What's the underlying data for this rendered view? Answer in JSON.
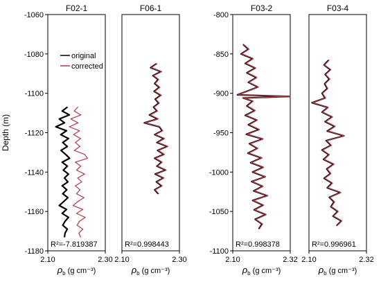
{
  "chart_data": [
    {
      "type": "line",
      "title": "F02-1",
      "xlabel_symbol": "ρ",
      "xlabel_subscript": "b",
      "xlabel_unit": " (g cm⁻³)",
      "ylabel": "Depth (m)",
      "xlim": [
        2.1,
        2.3
      ],
      "ylim": [
        -1180,
        -1060
      ],
      "xticks": [
        "2.10",
        "2.30"
      ],
      "yticks": [
        -1060,
        -1080,
        -1100,
        -1120,
        -1140,
        -1160,
        -1180
      ],
      "legend": [
        "original",
        "corrected"
      ],
      "legend_position": "top-left",
      "r2_label": "R²=-7.819387",
      "series": [
        {
          "name": "original",
          "color": "#000000",
          "depth": [
            -1107,
            -1109,
            -1111,
            -1113,
            -1115,
            -1117,
            -1119,
            -1121,
            -1123,
            -1125,
            -1127,
            -1129,
            -1131,
            -1133,
            -1135,
            -1137,
            -1139,
            -1141,
            -1143,
            -1145,
            -1147,
            -1149,
            -1151,
            -1153,
            -1155,
            -1157,
            -1159,
            -1161,
            -1163,
            -1165,
            -1167,
            -1169,
            -1171,
            -1173
          ],
          "value": [
            2.168,
            2.15,
            2.175,
            2.14,
            2.158,
            2.128,
            2.165,
            2.145,
            2.172,
            2.152,
            2.168,
            2.146,
            2.162,
            2.176,
            2.15,
            2.168,
            2.154,
            2.172,
            2.158,
            2.17,
            2.15,
            2.166,
            2.152,
            2.17,
            2.155,
            2.14,
            2.165,
            2.15,
            2.172,
            2.16,
            2.152,
            2.168,
            2.16,
            2.158
          ]
        },
        {
          "name": "corrected",
          "color": "#b03a46",
          "depth": [
            -1107,
            -1109,
            -1111,
            -1113,
            -1115,
            -1117,
            -1119,
            -1121,
            -1123,
            -1125,
            -1127,
            -1129,
            -1131,
            -1133,
            -1135,
            -1137,
            -1139,
            -1141,
            -1143,
            -1145,
            -1147,
            -1149,
            -1151,
            -1153,
            -1155,
            -1157,
            -1159,
            -1161,
            -1163,
            -1165,
            -1167,
            -1169,
            -1171,
            -1173
          ],
          "value": [
            2.204,
            2.192,
            2.215,
            2.18,
            2.205,
            2.175,
            2.21,
            2.19,
            2.214,
            2.196,
            2.212,
            2.192,
            2.228,
            2.238,
            2.196,
            2.215,
            2.2,
            2.228,
            2.204,
            2.218,
            2.196,
            2.212,
            2.2,
            2.226,
            2.204,
            2.188,
            2.222,
            2.2,
            2.23,
            2.21,
            2.202,
            2.222,
            2.208,
            2.214
          ]
        }
      ]
    },
    {
      "type": "line",
      "title": "F06-1",
      "xlabel_symbol": "ρ",
      "xlabel_subscript": "b",
      "xlabel_unit": " (g cm⁻³)",
      "xlim": [
        2.1,
        2.3
      ],
      "ylim": [
        -1180,
        -1060
      ],
      "xticks": [
        "2.10",
        "2.30"
      ],
      "r2_label": "R²=0.998443",
      "series": [
        {
          "name": "original",
          "color": "#000000",
          "depth": [
            -1085,
            -1087,
            -1089,
            -1091,
            -1093,
            -1095,
            -1097,
            -1099,
            -1101,
            -1103,
            -1105,
            -1107,
            -1109,
            -1111,
            -1113,
            -1115,
            -1117,
            -1119,
            -1121,
            -1123,
            -1125,
            -1127,
            -1129,
            -1131,
            -1133,
            -1135,
            -1137,
            -1139,
            -1141,
            -1143,
            -1145,
            -1147,
            -1149,
            -1151
          ],
          "value": [
            2.22,
            2.2,
            2.236,
            2.208,
            2.226,
            2.214,
            2.23,
            2.212,
            2.235,
            2.216,
            2.228,
            2.21,
            2.222,
            2.196,
            2.224,
            2.178,
            2.23,
            2.24,
            2.214,
            2.246,
            2.222,
            2.258,
            2.224,
            2.246,
            2.214,
            2.238,
            2.222,
            2.252,
            2.216,
            2.244,
            2.22,
            2.238,
            2.214,
            2.226
          ]
        },
        {
          "name": "corrected",
          "color": "#b03a46",
          "depth": [
            -1085,
            -1087,
            -1089,
            -1091,
            -1093,
            -1095,
            -1097,
            -1099,
            -1101,
            -1103,
            -1105,
            -1107,
            -1109,
            -1111,
            -1113,
            -1115,
            -1117,
            -1119,
            -1121,
            -1123,
            -1125,
            -1127,
            -1129,
            -1131,
            -1133,
            -1135,
            -1137,
            -1139,
            -1141,
            -1143,
            -1145,
            -1147,
            -1149,
            -1151
          ],
          "value": [
            2.222,
            2.202,
            2.238,
            2.21,
            2.228,
            2.216,
            2.232,
            2.214,
            2.237,
            2.218,
            2.23,
            2.212,
            2.224,
            2.198,
            2.226,
            2.18,
            2.232,
            2.242,
            2.216,
            2.248,
            2.224,
            2.26,
            2.226,
            2.248,
            2.216,
            2.24,
            2.224,
            2.254,
            2.218,
            2.246,
            2.222,
            2.24,
            2.216,
            2.228
          ]
        }
      ]
    },
    {
      "type": "line",
      "title": "F03-2",
      "xlabel_symbol": "ρ",
      "xlabel_subscript": "b",
      "xlabel_unit": " (g cm⁻³)",
      "xlim": [
        2.1,
        2.32
      ],
      "ylim": [
        -1100,
        -800
      ],
      "xticks": [
        "2.10",
        "2.32"
      ],
      "yticks": [
        -800,
        -850,
        -900,
        -950,
        -1000,
        -1050,
        -1100
      ],
      "r2_label": "R²=0.998378",
      "series": [
        {
          "name": "original",
          "color": "#000000",
          "depth": [
            -838,
            -844,
            -850,
            -856,
            -862,
            -868,
            -874,
            -880,
            -886,
            -892,
            -898,
            -902,
            -904,
            -906,
            -910,
            -916,
            -922,
            -928,
            -934,
            -940,
            -946,
            -952,
            -958,
            -964,
            -970,
            -976,
            -982,
            -988,
            -994,
            -1000,
            -1006,
            -1012,
            -1018,
            -1024,
            -1030,
            -1036,
            -1042,
            -1048,
            -1054,
            -1060,
            -1066,
            -1072
          ],
          "value": [
            2.14,
            2.16,
            2.132,
            2.176,
            2.148,
            2.186,
            2.154,
            2.19,
            2.16,
            2.196,
            2.15,
            2.118,
            2.318,
            2.14,
            2.176,
            2.154,
            2.184,
            2.148,
            2.192,
            2.16,
            2.2,
            2.152,
            2.214,
            2.164,
            2.194,
            2.158,
            2.21,
            2.168,
            2.216,
            2.176,
            2.224,
            2.172,
            2.214,
            2.18,
            2.232,
            2.176,
            2.216,
            2.182,
            2.226,
            2.186,
            2.212,
            2.2
          ]
        },
        {
          "name": "corrected",
          "color": "#b03a46",
          "depth": [
            -838,
            -844,
            -850,
            -856,
            -862,
            -868,
            -874,
            -880,
            -886,
            -892,
            -898,
            -902,
            -904,
            -906,
            -910,
            -916,
            -922,
            -928,
            -934,
            -940,
            -946,
            -952,
            -958,
            -964,
            -970,
            -976,
            -982,
            -988,
            -994,
            -1000,
            -1006,
            -1012,
            -1018,
            -1024,
            -1030,
            -1036,
            -1042,
            -1048,
            -1054,
            -1060,
            -1066,
            -1072
          ],
          "value": [
            2.142,
            2.162,
            2.134,
            2.178,
            2.15,
            2.188,
            2.156,
            2.192,
            2.162,
            2.198,
            2.152,
            2.12,
            2.32,
            2.142,
            2.178,
            2.156,
            2.186,
            2.15,
            2.194,
            2.162,
            2.202,
            2.154,
            2.216,
            2.166,
            2.196,
            2.16,
            2.212,
            2.17,
            2.218,
            2.178,
            2.226,
            2.174,
            2.216,
            2.182,
            2.234,
            2.178,
            2.218,
            2.184,
            2.228,
            2.188,
            2.214,
            2.202
          ]
        }
      ]
    },
    {
      "type": "line",
      "title": "F03-4",
      "xlabel_symbol": "ρ",
      "xlabel_subscript": "b",
      "xlabel_unit": " (g cm⁻³)",
      "xlim": [
        2.1,
        2.32
      ],
      "ylim": [
        -1100,
        -800
      ],
      "xticks": [
        "2.10",
        "2.32"
      ],
      "r2_label": "R²=0.996961",
      "series": [
        {
          "name": "original",
          "color": "#000000",
          "depth": [
            -858,
            -864,
            -870,
            -876,
            -882,
            -888,
            -894,
            -900,
            -906,
            -912,
            -918,
            -924,
            -930,
            -936,
            -942,
            -948,
            -954,
            -960,
            -966,
            -972,
            -978,
            -984,
            -990,
            -996,
            -1002,
            -1008,
            -1014,
            -1020,
            -1026,
            -1032,
            -1038,
            -1044,
            -1050,
            -1056,
            -1062,
            -1068
          ],
          "value": [
            2.175,
            2.158,
            2.182,
            2.162,
            2.178,
            2.16,
            2.17,
            2.15,
            2.162,
            2.112,
            2.172,
            2.15,
            2.188,
            2.162,
            2.198,
            2.17,
            2.234,
            2.166,
            2.184,
            2.15,
            2.176,
            2.156,
            2.194,
            2.168,
            2.182,
            2.158,
            2.188,
            2.17,
            2.22,
            2.178,
            2.196,
            2.184,
            2.21,
            2.192,
            2.224,
            2.206
          ]
        },
        {
          "name": "corrected",
          "color": "#b03a46",
          "depth": [
            -858,
            -864,
            -870,
            -876,
            -882,
            -888,
            -894,
            -900,
            -906,
            -912,
            -918,
            -924,
            -930,
            -936,
            -942,
            -948,
            -954,
            -960,
            -966,
            -972,
            -978,
            -984,
            -990,
            -996,
            -1002,
            -1008,
            -1014,
            -1020,
            -1026,
            -1032,
            -1038,
            -1044,
            -1050,
            -1056,
            -1062,
            -1068
          ],
          "value": [
            2.177,
            2.16,
            2.184,
            2.164,
            2.18,
            2.162,
            2.172,
            2.152,
            2.164,
            2.114,
            2.174,
            2.152,
            2.19,
            2.164,
            2.2,
            2.172,
            2.236,
            2.168,
            2.186,
            2.152,
            2.178,
            2.158,
            2.196,
            2.17,
            2.184,
            2.16,
            2.19,
            2.172,
            2.222,
            2.18,
            2.198,
            2.186,
            2.212,
            2.194,
            2.226,
            2.208
          ]
        }
      ]
    }
  ]
}
